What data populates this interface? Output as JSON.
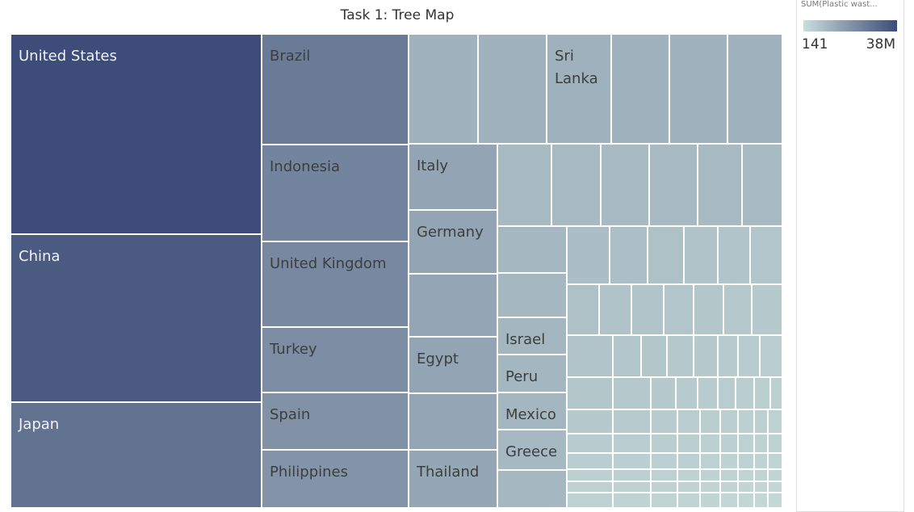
{
  "chart_data": {
    "type": "treemap",
    "title": "Task 1: Tree Map",
    "measure": "SUM(Plastic wast...",
    "color_range": {
      "min_label": "141",
      "max_label": "38M",
      "min_color": "#c9ddda",
      "max_color": "#3d4c78"
    },
    "labeled_tiles": [
      {
        "name": "United States",
        "value": 38000000
      },
      {
        "name": "China",
        "value": 28000000
      },
      {
        "name": "Japan",
        "value": 15000000
      },
      {
        "name": "Brazil",
        "value": 11900000
      },
      {
        "name": "Indonesia",
        "value": 9100000
      },
      {
        "name": "United Kingdom",
        "value": 8000000
      },
      {
        "name": "Turkey",
        "value": 6700000
      },
      {
        "name": "Spain",
        "value": 5700000
      },
      {
        "name": "Philippines",
        "value": 5200000
      },
      {
        "name": "Sri Lanka",
        "value": 1500000
      },
      {
        "name": "Italy",
        "value": 2700000
      },
      {
        "name": "Germany",
        "value": 2700000
      },
      {
        "name": "Egypt",
        "value": 2700000
      },
      {
        "name": "Thailand",
        "value": 2500000
      },
      {
        "name": "Israel",
        "value": 1100000
      },
      {
        "name": "Peru",
        "value": 1100000
      },
      {
        "name": "Mexico",
        "value": 1100000
      },
      {
        "name": "Greece",
        "value": 1000000
      }
    ]
  }
}
